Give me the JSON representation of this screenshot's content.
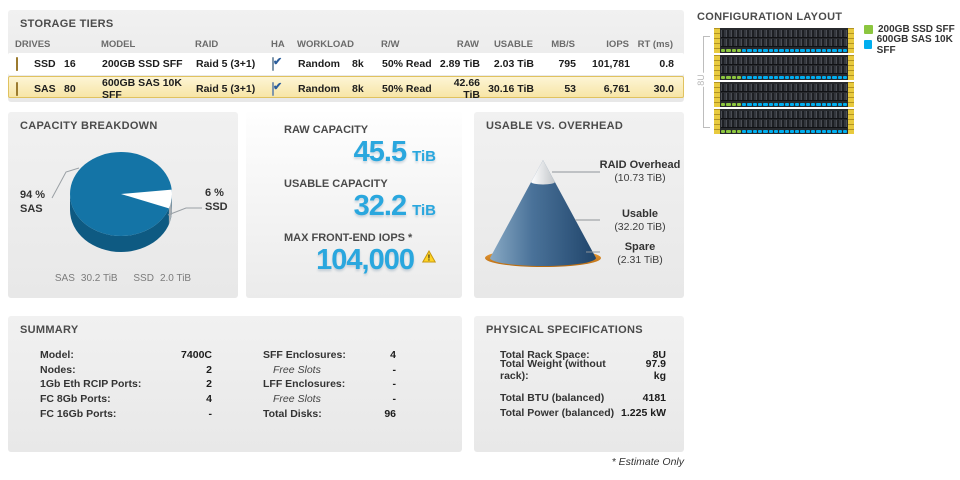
{
  "storage_tiers": {
    "title": "STORAGE TIERS",
    "headers": {
      "drives": "DRIVES",
      "model": "MODEL",
      "raid": "RAID",
      "ha": "HA",
      "workload": "WORKLOAD",
      "rw": "R/W",
      "raw": "RAW",
      "usable": "USABLE",
      "mbs": "MB/S",
      "iops": "IOPS",
      "rt": "RT (ms)"
    },
    "rows": [
      {
        "type": "SSD",
        "count": "16",
        "model": "200GB SSD SFF",
        "raid": "Raid 5 (3+1)",
        "ha": true,
        "workload": "Random",
        "block": "8k",
        "rw": "50% Read",
        "raw": "2.89 TiB",
        "usable": "2.03 TiB",
        "mbs": "795",
        "iops": "101,781",
        "rt": "0.8",
        "selected": false
      },
      {
        "type": "SAS",
        "count": "80",
        "model": "600GB SAS 10K SFF",
        "raid": "Raid 5 (3+1)",
        "ha": true,
        "workload": "Random",
        "block": "8k",
        "rw": "50% Read",
        "raw": "42.66 TiB",
        "usable": "30.16 TiB",
        "mbs": "53",
        "iops": "6,761",
        "rt": "30.0",
        "selected": true
      }
    ]
  },
  "configuration_layout": {
    "title": "CONFIGURATION LAYOUT",
    "rack_height_label": "8U",
    "enclosure_count": 4,
    "slots_per_enclosure": 24,
    "ssd_slots_per_enclosure": 4,
    "legend": [
      {
        "label": "200GB SSD SFF",
        "color": "#8cc63f"
      },
      {
        "label": "600GB SAS 10K SFF",
        "color": "#00aeef"
      }
    ]
  },
  "capacity_breakdown": {
    "title": "CAPACITY BREAKDOWN",
    "left_pct": "94 %",
    "left_name": "SAS",
    "right_pct": "6 %",
    "right_name": "SSD",
    "footer": {
      "name1": "SAS",
      "size1": "30.2 TiB",
      "name2": "SSD",
      "size2": "2.0 TiB"
    }
  },
  "capacity_panel": {
    "raw_label": "RAW CAPACITY",
    "raw_value": "45.5",
    "raw_unit": "TiB",
    "usable_label": "USABLE CAPACITY",
    "usable_value": "32.2",
    "usable_unit": "TiB",
    "iops_label": "MAX FRONT-END IOPS *",
    "iops_value": "104,000"
  },
  "usable_vs_overhead": {
    "title": "USABLE VS. OVERHEAD",
    "labels": [
      {
        "name": "RAID Overhead",
        "value": "(10.73 TiB)"
      },
      {
        "name": "Usable",
        "value": "(32.20 TiB)"
      },
      {
        "name": "Spare",
        "value": "(2.31 TiB)"
      }
    ]
  },
  "summary": {
    "title": "SUMMARY",
    "left": [
      {
        "label": "Model:",
        "value": "7400C"
      },
      {
        "label": "Nodes:",
        "value": "2"
      },
      {
        "label": "1Gb Eth RCIP Ports:",
        "value": "2"
      },
      {
        "label": "FC 8Gb Ports:",
        "value": "4"
      },
      {
        "label": "FC 16Gb Ports:",
        "value": "-"
      }
    ],
    "right": [
      {
        "label": "SFF Enclosures:",
        "value": "4"
      },
      {
        "label": "Free Slots",
        "value": "-",
        "italic": true
      },
      {
        "label": "LFF Enclosures:",
        "value": "-"
      },
      {
        "label": "Free Slots",
        "value": "-",
        "italic": true
      },
      {
        "label": "Total Disks:",
        "value": "96"
      }
    ]
  },
  "physical_specifications": {
    "title": "PHYSICAL SPECIFICATIONS",
    "rows": [
      {
        "label": "Total Rack Space:",
        "value": "8U"
      },
      {
        "label": "Total Weight (without rack):",
        "value": "97.9 kg"
      },
      {
        "spacer": true
      },
      {
        "label": "Total BTU (balanced)",
        "value": "4181"
      },
      {
        "label": "Total Power (balanced)",
        "value": "1.225 kW"
      }
    ]
  },
  "footnote": "* Estimate Only",
  "colors": {
    "accent_blue": "#2aa7de",
    "pie_top": "#1474a6",
    "pie_side": "#0e5a82",
    "pie_slice": "#ffffff",
    "pie_cut_side": "#a7adb2",
    "cone_blue_light": "#88a9c4",
    "cone_blue_dark": "#20456b",
    "cone_tip": "#ffffff",
    "cone_base_orange": "#e8912d",
    "selected_row": "#f7e5a6",
    "warning_yellow": "#ffd324"
  },
  "chart_data": [
    {
      "type": "pie",
      "title": "CAPACITY BREAKDOWN",
      "categories": [
        "SAS",
        "SSD"
      ],
      "values": [
        94,
        6
      ],
      "sizes_tib": [
        30.2,
        2.0
      ],
      "colors": [
        "#1474a6",
        "#ffffff"
      ],
      "legend_position": "callout-labels",
      "style": "3d-pie"
    },
    {
      "type": "area",
      "title": "USABLE VS. OVERHEAD",
      "categories": [
        "RAID Overhead",
        "Usable",
        "Spare"
      ],
      "values": [
        10.73,
        32.2,
        2.31
      ],
      "unit": "TiB",
      "colors": [
        "#ffffff",
        "#3a6globe-not-used",
        "#e8912d"
      ],
      "style": "cone-stack"
    }
  ]
}
